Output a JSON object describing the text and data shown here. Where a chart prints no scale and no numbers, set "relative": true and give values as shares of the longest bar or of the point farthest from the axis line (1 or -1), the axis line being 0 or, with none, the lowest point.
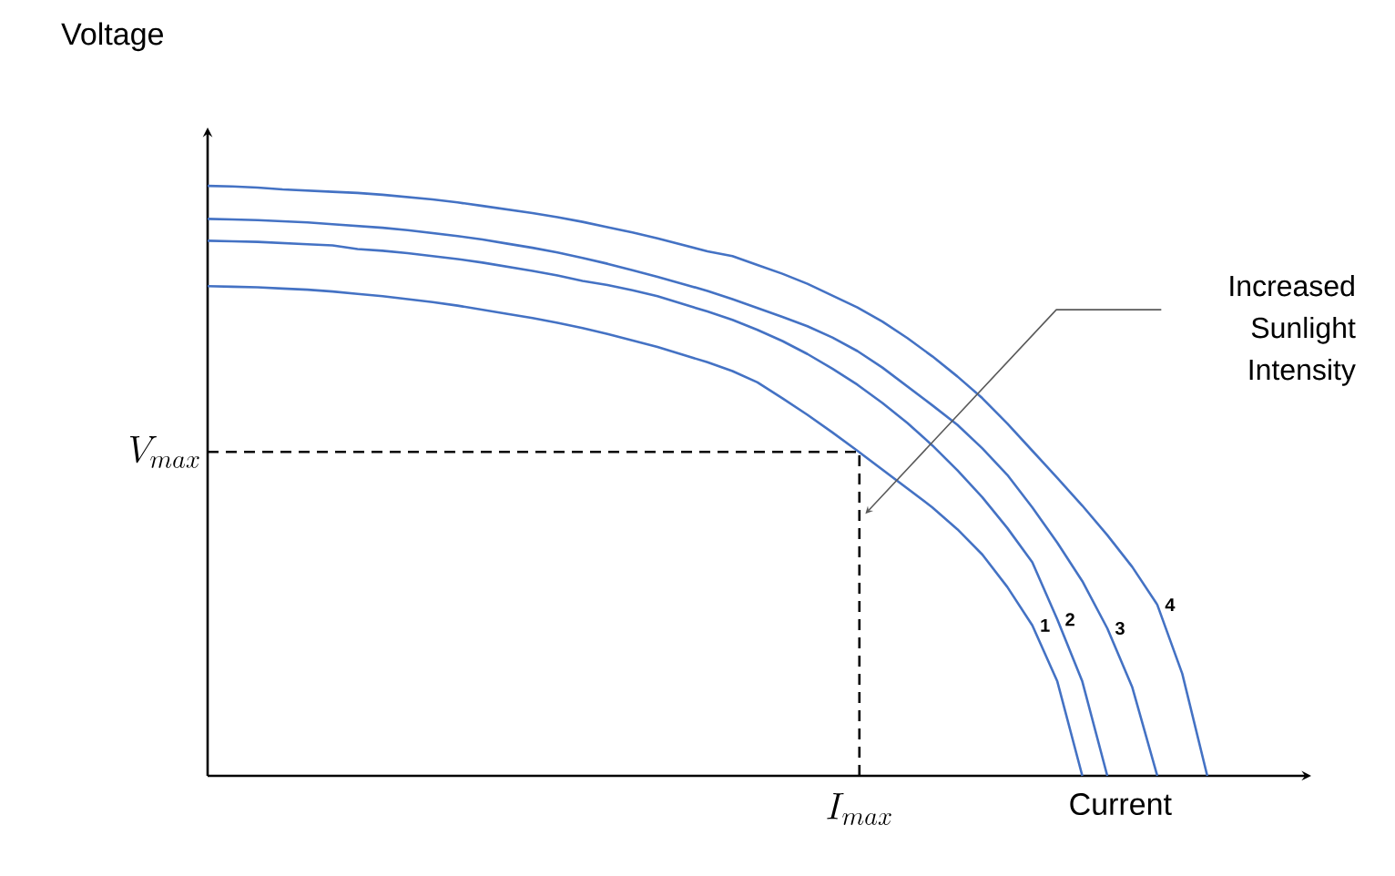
{
  "chart_data": {
    "type": "line",
    "relative": true,
    "xlabel": "Current",
    "ylabel": "Voltage",
    "line_style": "solid",
    "marker": "none",
    "categories": [
      null,
      null,
      null,
      null,
      null,
      null,
      null,
      null,
      null,
      null,
      null,
      null,
      null,
      null,
      null,
      null,
      null,
      null,
      null,
      null,
      null,
      null,
      null,
      null,
      null,
      null,
      null,
      null,
      null,
      null,
      null,
      null,
      null,
      null,
      null,
      null,
      null,
      null,
      null,
      null,
      null
    ],
    "series": [
      {
        "name": "1",
        "color": "#4472c4",
        "values": [
          0.83,
          0.829,
          0.828,
          0.826,
          0.824,
          0.821,
          0.817,
          0.813,
          0.808,
          0.803,
          0.797,
          0.79,
          0.783,
          0.776,
          0.768,
          0.759,
          0.749,
          0.738,
          0.727,
          0.714,
          0.701,
          0.686,
          0.667,
          0.64,
          0.612,
          0.582,
          0.551,
          0.519,
          0.487,
          0.455,
          0.418,
          0.375,
          0.32,
          0.255,
          0.16,
          0,
          null,
          null,
          null,
          null,
          null
        ]
      },
      {
        "name": "2",
        "color": "#4472c4",
        "values": [
          0.907,
          0.906,
          0.905,
          0.903,
          0.901,
          0.899,
          0.893,
          0.89,
          0.886,
          0.881,
          0.876,
          0.87,
          0.863,
          0.856,
          0.848,
          0.839,
          0.832,
          0.823,
          0.813,
          0.8,
          0.787,
          0.773,
          0.756,
          0.737,
          0.715,
          0.69,
          0.663,
          0.632,
          0.598,
          0.56,
          0.518,
          0.472,
          0.42,
          0.362,
          0.265,
          0.16,
          0,
          null,
          null,
          null,
          null
        ]
      },
      {
        "name": "3",
        "color": "#4472c4",
        "values": [
          0.944,
          0.943,
          0.942,
          0.94,
          0.938,
          0.935,
          0.932,
          0.929,
          0.925,
          0.92,
          0.915,
          0.909,
          0.902,
          0.895,
          0.887,
          0.878,
          0.868,
          0.857,
          0.846,
          0.834,
          0.822,
          0.808,
          0.793,
          0.778,
          0.762,
          0.743,
          0.72,
          0.692,
          0.66,
          0.628,
          0.595,
          0.555,
          0.51,
          0.455,
          0.395,
          0.33,
          0.25,
          0.15,
          0,
          null,
          null
        ]
      },
      {
        "name": "4",
        "color": "#4472c4",
        "values": [
          1,
          0.999,
          0.997,
          0.994,
          0.992,
          0.99,
          0.988,
          0.985,
          0.981,
          0.977,
          0.972,
          0.966,
          0.96,
          0.954,
          0.947,
          0.939,
          0.93,
          0.921,
          0.911,
          0.9,
          0.889,
          0.881,
          0.866,
          0.851,
          0.834,
          0.814,
          0.794,
          0.77,
          0.742,
          0.711,
          0.677,
          0.64,
          0.597,
          0.551,
          0.505,
          0.458,
          0.408,
          0.354,
          0.29,
          0.173,
          0
        ]
      }
    ],
    "ref_lines": [
      {
        "axis": "y",
        "value": 0.549,
        "label": "V_{max}",
        "line_style": "dashed",
        "color": "#000000"
      }
    ],
    "annotations": [
      "Increased Sunlight Intensity",
      "I_{max}"
    ]
  }
}
